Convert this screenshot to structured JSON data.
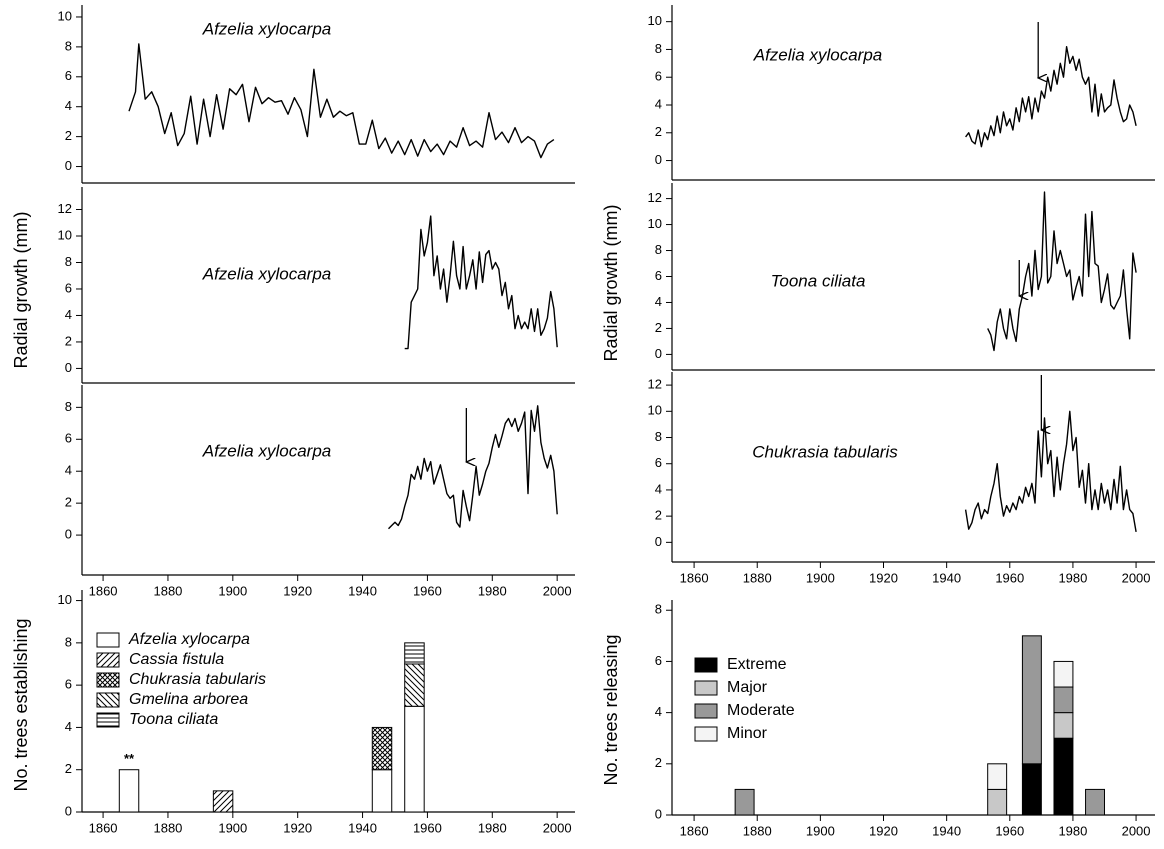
{
  "chart_data": [
    {
      "type": "line",
      "label": "Afzelia xylocarpa",
      "color": "#000000",
      "x": [
        1868,
        1870,
        1871,
        1873,
        1875,
        1877,
        1879,
        1881,
        1883,
        1885,
        1887,
        1889,
        1891,
        1893,
        1895,
        1897,
        1899,
        1901,
        1903,
        1905,
        1907,
        1909,
        1911,
        1913,
        1915,
        1917,
        1919,
        1921,
        1923,
        1925,
        1927,
        1929,
        1931,
        1933,
        1935,
        1937,
        1939,
        1941,
        1943,
        1945,
        1947,
        1949,
        1951,
        1953,
        1955,
        1957,
        1959,
        1961,
        1963,
        1965,
        1967,
        1969,
        1971,
        1973,
        1975,
        1977,
        1979,
        1981,
        1983,
        1985,
        1987,
        1989,
        1991,
        1993,
        1995,
        1997,
        1999
      ],
      "values": [
        3.7,
        5,
        8.2,
        4.5,
        5,
        4,
        2.2,
        3.6,
        1.4,
        2.2,
        4.7,
        1.5,
        4.5,
        2,
        4.8,
        2.5,
        5.2,
        4.8,
        5.5,
        3,
        5.3,
        4.2,
        4.6,
        4.3,
        4.4,
        3.5,
        4.6,
        3.8,
        2,
        6.5,
        3.3,
        4.5,
        3.3,
        3.7,
        3.4,
        3.6,
        1.5,
        1.5,
        3.1,
        1.2,
        1.9,
        0.9,
        1.7,
        0.8,
        1.8,
        0.7,
        1.8,
        1,
        1.5,
        0.8,
        1.7,
        1.3,
        2.6,
        1.4,
        1.7,
        1.3,
        3.6,
        1.8,
        2.3,
        1.6,
        2.6,
        1.6,
        2,
        1.7,
        0.6,
        1.5,
        1.8
      ],
      "xlim": [
        1853.5,
        2005.5
      ],
      "ylim": [
        -1.1,
        10.8
      ],
      "yticks": [
        0,
        2,
        4,
        6,
        8,
        10
      ]
    },
    {
      "type": "line",
      "label": "Afzelia xylocarpa",
      "color": "#000000",
      "ylabel": "Radial growth (mm)",
      "x": [
        1953,
        1954,
        1955,
        1956,
        1957,
        1958,
        1959,
        1960,
        1961,
        1962,
        1963,
        1964,
        1965,
        1966,
        1967,
        1968,
        1969,
        1970,
        1971,
        1972,
        1973,
        1974,
        1975,
        1976,
        1977,
        1978,
        1979,
        1980,
        1981,
        1982,
        1983,
        1984,
        1985,
        1986,
        1987,
        1988,
        1989,
        1990,
        1991,
        1992,
        1993,
        1994,
        1995,
        1996,
        1997,
        1998,
        1999,
        2000
      ],
      "values": [
        1.5,
        1.5,
        5,
        5.5,
        6,
        10.5,
        8.5,
        9.5,
        11.5,
        7,
        8.5,
        6,
        7.5,
        5,
        7,
        9.6,
        7,
        6,
        9.2,
        6,
        7,
        8.2,
        6,
        8.8,
        6.5,
        8.6,
        8.9,
        7.5,
        8,
        7.5,
        5.5,
        6.5,
        4.5,
        5.5,
        3,
        4,
        3,
        3.5,
        3,
        4.5,
        2.8,
        4.5,
        2.5,
        3,
        3.8,
        5.8,
        4.5,
        1.6
      ],
      "xlim": [
        1853.5,
        2005.5
      ],
      "ylim": [
        -1.1,
        13.7
      ],
      "yticks": [
        0,
        2,
        4,
        6,
        8,
        10,
        12
      ]
    },
    {
      "type": "line",
      "label": "Afzelia xylocarpa",
      "color": "#000000",
      "arrow_x": 1972,
      "x": [
        1948,
        1949,
        1950,
        1951,
        1952,
        1953,
        1954,
        1955,
        1956,
        1957,
        1958,
        1959,
        1960,
        1961,
        1962,
        1963,
        1964,
        1965,
        1966,
        1967,
        1968,
        1969,
        1970,
        1971,
        1972,
        1973,
        1974,
        1975,
        1976,
        1977,
        1978,
        1979,
        1980,
        1981,
        1982,
        1983,
        1984,
        1985,
        1986,
        1987,
        1988,
        1989,
        1990,
        1991,
        1992,
        1993,
        1994,
        1995,
        1996,
        1997,
        1998,
        1999,
        2000
      ],
      "values": [
        0.4,
        0.6,
        0.8,
        0.6,
        1,
        1.8,
        2.5,
        3.8,
        3.5,
        4.3,
        3.5,
        4.8,
        4,
        4.6,
        3.2,
        3.8,
        4.4,
        3.5,
        2.6,
        2.3,
        2.5,
        0.8,
        0.5,
        2.8,
        1.8,
        0.9,
        2.5,
        4.3,
        2.5,
        3.2,
        4,
        4.5,
        5.5,
        6.3,
        5.5,
        6.2,
        7,
        7.3,
        6.8,
        7.3,
        6.5,
        7,
        7.7,
        2.6,
        7.8,
        6.5,
        8.1,
        5.8,
        4.8,
        4.2,
        5,
        4,
        1.3
      ],
      "xlim": [
        1853.5,
        2005.5
      ],
      "ylim": [
        -2.5,
        9.4
      ],
      "yticks": [
        0,
        2,
        4,
        6,
        8
      ],
      "xticks": [
        1860,
        1880,
        1900,
        1920,
        1940,
        1960,
        1980,
        2000
      ]
    },
    {
      "type": "line",
      "label": "Afzelia xylocarpa",
      "color": "#000000",
      "arrow_x": 1969,
      "x": [
        1946,
        1947,
        1948,
        1949,
        1950,
        1951,
        1952,
        1953,
        1954,
        1955,
        1956,
        1957,
        1958,
        1959,
        1960,
        1961,
        1962,
        1963,
        1964,
        1965,
        1966,
        1967,
        1968,
        1969,
        1970,
        1971,
        1972,
        1973,
        1974,
        1975,
        1976,
        1977,
        1978,
        1979,
        1980,
        1981,
        1982,
        1983,
        1984,
        1985,
        1986,
        1987,
        1988,
        1989,
        1990,
        1991,
        1992,
        1993,
        1994,
        1995,
        1996,
        1997,
        1998,
        1999,
        2000
      ],
      "values": [
        1.7,
        2,
        1.4,
        1.2,
        2.2,
        1,
        2,
        1.5,
        2.5,
        1.8,
        3.2,
        2,
        3.5,
        2.5,
        3,
        2.2,
        3.8,
        2.8,
        4.5,
        3.5,
        4.6,
        3,
        4.5,
        3.5,
        5,
        4.5,
        6,
        5,
        6.5,
        5.5,
        7,
        6,
        8.2,
        7,
        7.5,
        6.5,
        7.3,
        6,
        5.5,
        6,
        3.5,
        5.5,
        3.2,
        4.8,
        3.5,
        3.8,
        4,
        5.8,
        4.5,
        3.5,
        2.8,
        3,
        4,
        3.5,
        2.5
      ],
      "xlim": [
        1853,
        2006
      ],
      "ylim": [
        -1.4,
        11.2
      ],
      "yticks": [
        0,
        2,
        4,
        6,
        8,
        10
      ]
    },
    {
      "type": "line",
      "label": "Toona ciliata",
      "color": "#000000",
      "arrow_x": 1963,
      "ylabel": "Radial growth (mm)",
      "x": [
        1953,
        1954,
        1955,
        1956,
        1957,
        1958,
        1959,
        1960,
        1961,
        1962,
        1963,
        1964,
        1965,
        1966,
        1967,
        1968,
        1969,
        1970,
        1971,
        1972,
        1973,
        1974,
        1975,
        1976,
        1977,
        1978,
        1979,
        1980,
        1981,
        1982,
        1983,
        1984,
        1985,
        1986,
        1987,
        1988,
        1989,
        1990,
        1991,
        1992,
        1993,
        1994,
        1995,
        1996,
        1997,
        1998,
        1999,
        2000
      ],
      "values": [
        2,
        1.5,
        0.3,
        2.5,
        3.5,
        2,
        1.2,
        3.5,
        2,
        1,
        3.5,
        4.5,
        6,
        7,
        4.5,
        8,
        5,
        6,
        12.5,
        5.5,
        6,
        9.5,
        7,
        8,
        7,
        6,
        6.5,
        4.2,
        5.2,
        6,
        4.5,
        10.8,
        6,
        11,
        7,
        6.8,
        4,
        5,
        6.2,
        3.8,
        3.5,
        4,
        4.5,
        6.5,
        3.5,
        1.2,
        7.8,
        6.3
      ],
      "xlim": [
        1853,
        2006
      ],
      "ylim": [
        -1.2,
        13.2
      ],
      "yticks": [
        0,
        2,
        4,
        6,
        8,
        10,
        12
      ]
    },
    {
      "type": "line",
      "label": "Chukrasia tabularis",
      "color": "#000000",
      "arrow_x": 1970,
      "x": [
        1946,
        1947,
        1948,
        1949,
        1950,
        1951,
        1952,
        1953,
        1954,
        1955,
        1956,
        1957,
        1958,
        1959,
        1960,
        1961,
        1962,
        1963,
        1964,
        1965,
        1966,
        1967,
        1968,
        1969,
        1970,
        1971,
        1972,
        1973,
        1974,
        1975,
        1976,
        1977,
        1978,
        1979,
        1980,
        1981,
        1982,
        1983,
        1984,
        1985,
        1986,
        1987,
        1988,
        1989,
        1990,
        1991,
        1992,
        1993,
        1994,
        1995,
        1996,
        1997,
        1998,
        1999,
        2000
      ],
      "values": [
        2.5,
        1,
        1.5,
        2.5,
        3,
        1.8,
        2.5,
        2.2,
        3.5,
        4.5,
        6,
        3.5,
        2,
        2.8,
        2.3,
        3,
        2.5,
        3.5,
        3,
        4.2,
        3.5,
        4.5,
        3,
        8.5,
        5,
        9.5,
        6,
        7,
        3.5,
        6.5,
        4,
        6,
        7.5,
        10,
        7,
        8,
        4.2,
        5.5,
        3,
        6,
        2.5,
        4,
        2.5,
        4.5,
        3,
        4,
        2.5,
        4.8,
        3,
        5.8,
        2.5,
        4,
        2.5,
        2.2,
        0.8
      ],
      "xlim": [
        1853,
        2006
      ],
      "ylim": [
        -1.5,
        13
      ],
      "yticks": [
        0,
        2,
        4,
        6,
        8,
        10,
        12
      ],
      "xticks": [
        1860,
        1880,
        1900,
        1920,
        1940,
        1960,
        1980,
        2000
      ]
    },
    {
      "type": "bar",
      "ylabel": "No. trees establishing",
      "annotation": "**",
      "x": [
        1868,
        1897,
        1946,
        1956
      ],
      "series": [
        {
          "name": "Afzelia xylocarpa",
          "color": "#ffffff",
          "pattern": "none",
          "values": [
            2,
            0,
            2,
            5
          ]
        },
        {
          "name": "Cassia fistula",
          "color": "#ffffff",
          "pattern": "diagonal",
          "values": [
            0,
            1,
            0,
            0
          ]
        },
        {
          "name": "Chukrasia tabularis",
          "color": "#ffffff",
          "pattern": "crosshatch",
          "values": [
            0,
            0,
            2,
            0
          ]
        },
        {
          "name": "Gmelina arborea",
          "color": "#ffffff",
          "pattern": "backdiagonal",
          "values": [
            0,
            0,
            0,
            2
          ]
        },
        {
          "name": "Toona ciliata",
          "color": "#ffffff",
          "pattern": "horizontal",
          "values": [
            0,
            0,
            0,
            1
          ]
        }
      ],
      "xlim": [
        1853.5,
        2005.5
      ],
      "ylim": [
        0,
        10.5
      ],
      "yticks": [
        0,
        2,
        4,
        6,
        8,
        10
      ],
      "xticks": [
        1860,
        1880,
        1900,
        1920,
        1940,
        1960,
        1980,
        2000
      ]
    },
    {
      "type": "bar",
      "ylabel": "No. trees releasing",
      "x": [
        1876,
        1956,
        1967,
        1977,
        1987
      ],
      "series": [
        {
          "name": "Extreme",
          "color": "#000000",
          "pattern": "none",
          "values": [
            0,
            0,
            2,
            3,
            0
          ]
        },
        {
          "name": "Major",
          "color": "#c8c8c8",
          "pattern": "none",
          "values": [
            0,
            1,
            0,
            1,
            0
          ]
        },
        {
          "name": "Moderate",
          "color": "#999999",
          "pattern": "none",
          "values": [
            1,
            0,
            5,
            1,
            1
          ]
        },
        {
          "name": "Minor",
          "color": "#f4f4f4",
          "pattern": "none",
          "values": [
            0,
            1,
            0,
            1,
            0
          ]
        }
      ],
      "xlim": [
        1853,
        2006
      ],
      "ylim": [
        0,
        8.4
      ],
      "yticks": [
        0,
        2,
        4,
        6,
        8
      ],
      "xticks": [
        1860,
        1880,
        1900,
        1920,
        1940,
        1960,
        1980,
        2000
      ]
    }
  ]
}
